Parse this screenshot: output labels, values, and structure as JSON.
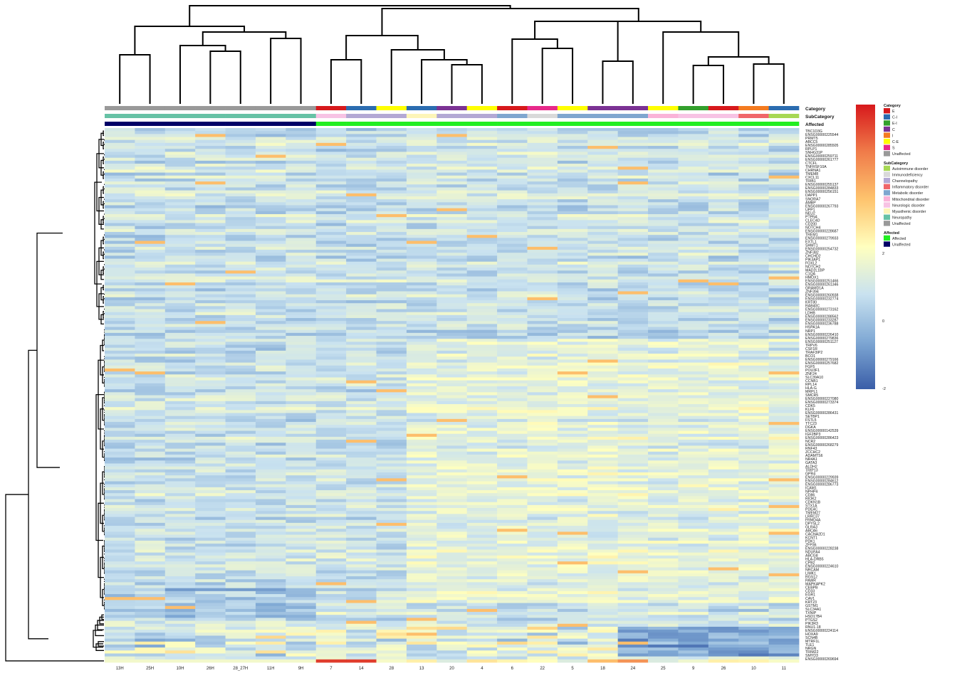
{
  "chart_data": {
    "type": "heatmap",
    "columns": [
      "13H",
      "25H",
      "10H",
      "26H",
      "28_27H",
      "11H",
      "9H",
      "7",
      "14",
      "28",
      "13",
      "20",
      "4",
      "6",
      "22",
      "5",
      "18",
      "24",
      "25",
      "9",
      "26",
      "10",
      "11"
    ],
    "annotations": {
      "category": [
        "Unaffected",
        "Unaffected",
        "Unaffected",
        "Unaffected",
        "Unaffected",
        "Unaffected",
        "Unaffected",
        "E",
        "C-I",
        "C-E",
        "C-I",
        "C",
        "C-E",
        "E",
        "S",
        "C-E",
        "C",
        "C",
        "C-E",
        "E-I",
        "E",
        "I",
        "C-I"
      ],
      "subcategory": [
        "Neuropathy",
        "Neuropathy",
        "Neuropathy",
        "Neuropathy",
        "Neuropathy",
        "Neuropathy",
        "Neuropathy",
        "Neurologic disorder",
        "Channelopathy",
        "Channelopathy",
        "Myasthenic disorder",
        "Channelopathy",
        "Channelopathy",
        "Metabolic disorder",
        "Immunodeficiency",
        "Metabolic disorder",
        "Metabolic disorder",
        "Metabolic disorder",
        "Mitochondrial disorder",
        "Neurologic disorder",
        "Neurologic disorder",
        "Inflammatory disorder",
        "Autoimmune disorder"
      ],
      "affected": [
        "Unaffected",
        "Unaffected",
        "Unaffected",
        "Unaffected",
        "Unaffected",
        "Unaffected",
        "Unaffected",
        "Affected",
        "Affected",
        "Affected",
        "Affected",
        "Affected",
        "Affected",
        "Affected",
        "Affected",
        "Affected",
        "Affected",
        "Affected",
        "Affected",
        "Affected",
        "Affected",
        "Affected",
        "Affected"
      ]
    },
    "annotation_labels": [
      "Category",
      "SubCategory",
      "Affected"
    ],
    "legends": {
      "category": {
        "title": "Category",
        "entries": [
          {
            "label": "E",
            "color": "#d7191c"
          },
          {
            "label": "C-I",
            "color": "#2b6cb0"
          },
          {
            "label": "E-I",
            "color": "#33a02c"
          },
          {
            "label": "C",
            "color": "#7b3294"
          },
          {
            "label": "I",
            "color": "#f47b20"
          },
          {
            "label": "C-E",
            "color": "#ffff00"
          },
          {
            "label": "S",
            "color": "#e7298a"
          },
          {
            "label": "Unaffected",
            "color": "#999999"
          }
        ]
      },
      "subcategory": {
        "title": "SubCategory",
        "entries": [
          {
            "label": "Autoimmune disorder",
            "color": "#a6d854"
          },
          {
            "label": "Immunodeficiency",
            "color": "#d9d9d9"
          },
          {
            "label": "Channelopathy",
            "color": "#b3a8d4"
          },
          {
            "label": "Inflammatory disorder",
            "color": "#f0666a"
          },
          {
            "label": "Metabolic disorder",
            "color": "#7fa6cf"
          },
          {
            "label": "Mitochondrial disorder",
            "color": "#fab3d8"
          },
          {
            "label": "Neurologic disorder",
            "color": "#f7c3e4"
          },
          {
            "label": "Myasthenic disorder",
            "color": "#fdf5b8"
          },
          {
            "label": "Neuropathy",
            "color": "#66c2a5"
          },
          {
            "label": "Unaffected",
            "color": "#999999"
          }
        ]
      },
      "affected": {
        "title": "Affected",
        "entries": [
          {
            "label": "Affected",
            "color": "#22ee22"
          },
          {
            "label": "Unaffected",
            "color": "#000066"
          }
        ]
      }
    },
    "colorbar": {
      "ticks": [
        "2",
        "0",
        "-2"
      ],
      "colors": [
        "#3a5ea8",
        "#7fa8d4",
        "#c9e2f0",
        "#ffffbf",
        "#fec46e",
        "#f07c4a",
        "#d7191c"
      ]
    },
    "row_labels": [
      "TBC1D3G",
      "ENSG00000225544",
      "PRMT5",
      "ABCC5",
      "ENSG00000285505",
      "RPLP1",
      "SNHG31P",
      "ENSG00000259711",
      "ENSG00000261777",
      "CTCFL",
      "TNFRSF10A",
      "CHRNA1",
      "TMEM8",
      "CXCL11",
      "TRIB1",
      "ENSG00000255137",
      "ENSG00000284833",
      "ENSG00000256151",
      "DAPP1",
      "SNORA7",
      "AMBP",
      "ENSG00000267793",
      "UPP1",
      "NEU2",
      "PTPN4",
      "CLEC4D",
      "CD200",
      "NOTCH4",
      "ENSG00000228687",
      "TREM1",
      "ENSG00000279933",
      "EXTL1",
      "SHMT1",
      "ENSG00000254732",
      "ZNF382",
      "CHCHD2",
      "PIK3AP1",
      "FOXL2",
      "NOTCH2",
      "MAD2L1BP",
      "C1QA",
      "HMOX1",
      "ENSG00000251466",
      "ENSG00000261346",
      "GRAMD1A",
      "ZNF394",
      "ENSG00000260938",
      "ENSG00000232774",
      "KRT80",
      "RAB40C",
      "ENSG00000273162",
      "LDHB",
      "ENSG00000288562",
      "ENSG00000233287",
      "ENSG00000236788",
      "HSPA1A",
      "NRP1",
      "ENSG00000226410",
      "ENSG00000279836",
      "ENSG00000251127",
      "TRPV6",
      "CSF1R",
      "TRAF3IP2",
      "BCO1",
      "ENSG00000279166",
      "ENSG00000257682",
      "FGF5",
      "POU3F1",
      "ZNF24",
      "SLC39A10",
      "CCNB1",
      "RPL14",
      "HLA-G",
      "MRPL1",
      "SMCR5",
      "ENSG00000227080",
      "ENSG00000273374",
      "CDK5",
      "KLF6",
      "ENSG00000286431",
      "SETBP1",
      "FSTL5",
      "TTC23",
      "DGKA",
      "ENSG00000142539",
      "IGF2BP3",
      "ENSG00000286423",
      "NCR2",
      "ENSG00000268279",
      "RNF43",
      "ZCCHC2",
      "ADAMTS6",
      "NR4A1",
      "GATA3",
      "ALDH2",
      "TRIP13",
      "GPR4",
      "ENSG00000229939",
      "ENSG00000284612",
      "ENSG00000286773",
      "ICAM1",
      "NPHP4",
      "CD86",
      "RIOK2",
      "CDKN1B",
      "STX1A",
      "PDE4C",
      "TMEM27",
      "LRRC37",
      "FRMD4A",
      "DPYSL2",
      "GLRA3",
      "ABCA6",
      "CACNA2D1",
      "KCNT1",
      "PDK1",
      "ZFP36",
      "ENSG00000228238",
      "NDUFA4",
      "ABCG8",
      "HLA-DRB5",
      "CPB2",
      "ENSG00000224610",
      "NRCAM",
      "LIMK1",
      "RGS12",
      "PAWR",
      "MAPKAPK2",
      "CEBPB",
      "CD33",
      "EGR1",
      "CAV1",
      "KRT23",
      "GSTM1",
      "SLC34A1",
      "TXNIP",
      "HSD17B4",
      "PTGS2",
      "PIK3R3",
      "RNU1-18",
      "ENSG00000224114",
      "HOXA9",
      "SCN4B",
      "MTRF1L",
      "TLE1",
      "NRGN",
      "TRIM22",
      "SMYD3",
      "ENSG00000269694"
    ]
  }
}
